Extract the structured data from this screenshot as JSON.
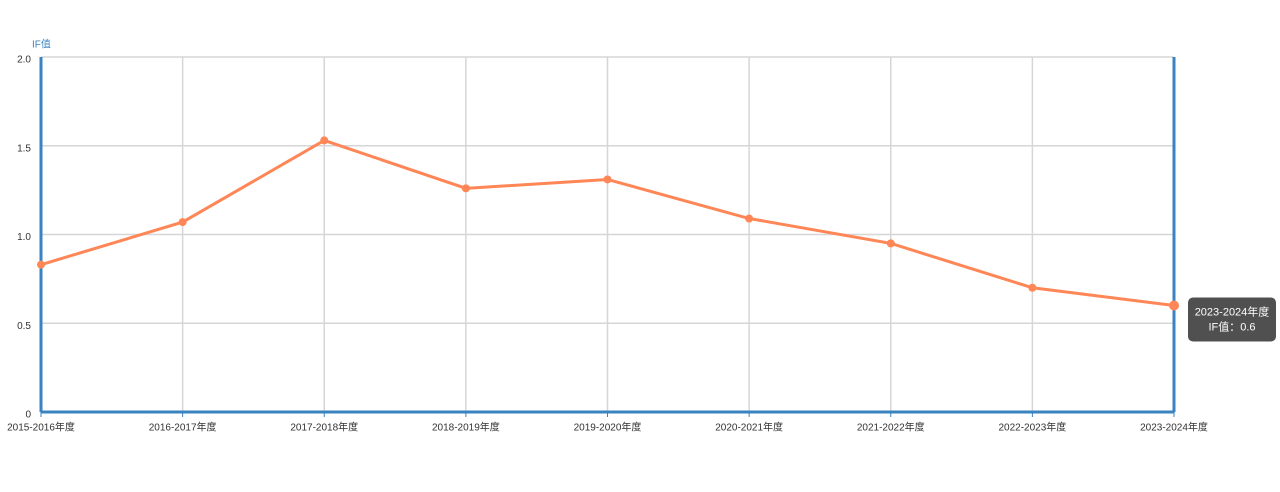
{
  "chart_data": {
    "type": "line",
    "ylabel": "IF值",
    "categories": [
      "2015-2016年度",
      "2016-2017年度",
      "2017-2018年度",
      "2018-2019年度",
      "2019-2020年度",
      "2020-2021年度",
      "2021-2022年度",
      "2022-2023年度",
      "2023-2024年度"
    ],
    "values": [
      0.83,
      1.07,
      1.53,
      1.26,
      1.31,
      1.09,
      0.95,
      0.7,
      0.6
    ],
    "color": "#ff8656",
    "axis_color": "#3a83c1",
    "ylim": [
      0,
      2
    ],
    "yticks": [
      0,
      0.5,
      {
        "value": 1,
        "label": "1.0"
      },
      1.5,
      {
        "value": 2,
        "label": "2.0"
      }
    ],
    "grid": true,
    "tooltip": {
      "title": "2023-2024年度",
      "text": "IF值：0.6"
    }
  }
}
